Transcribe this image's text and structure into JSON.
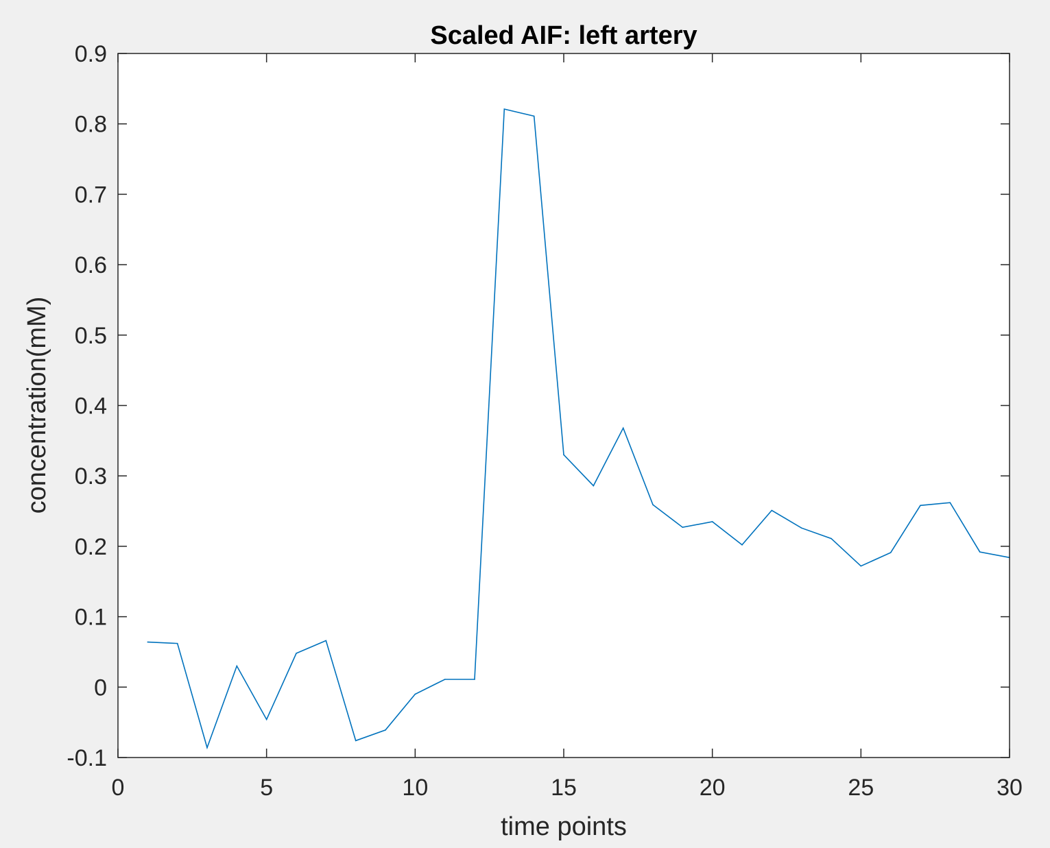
{
  "chart_data": {
    "type": "line",
    "title": "Scaled AIF: left artery",
    "xlabel": "time points",
    "ylabel": "concentration(mM)",
    "xlim": [
      0,
      30
    ],
    "ylim": [
      -0.1,
      0.9
    ],
    "xticks": [
      0,
      5,
      10,
      15,
      20,
      25,
      30
    ],
    "xtick_labels": [
      "0",
      "5",
      "10",
      "15",
      "20",
      "25",
      "30"
    ],
    "yticks": [
      -0.1,
      0,
      0.1,
      0.2,
      0.3,
      0.4,
      0.5,
      0.6,
      0.7,
      0.8,
      0.9
    ],
    "ytick_labels": [
      "-0.1",
      "0",
      "0.1",
      "0.2",
      "0.3",
      "0.4",
      "0.5",
      "0.6",
      "0.7",
      "0.8",
      "0.9"
    ],
    "grid": false,
    "series": [
      {
        "color": "#0072bd",
        "x": [
          1,
          2,
          3,
          4,
          5,
          6,
          7,
          8,
          9,
          10,
          11,
          12,
          13,
          14,
          15,
          16,
          17,
          18,
          19,
          20,
          21,
          22,
          23,
          24,
          25,
          26,
          27,
          28,
          29,
          30
        ],
        "y": [
          0.064,
          0.062,
          -0.086,
          0.03,
          -0.046,
          0.048,
          0.066,
          -0.076,
          -0.061,
          -0.01,
          0.011,
          0.011,
          0.821,
          0.811,
          0.33,
          0.286,
          0.368,
          0.259,
          0.227,
          0.235,
          0.202,
          0.251,
          0.226,
          0.211,
          0.172,
          0.191,
          0.258,
          0.262,
          0.192,
          0.184
        ]
      }
    ]
  }
}
